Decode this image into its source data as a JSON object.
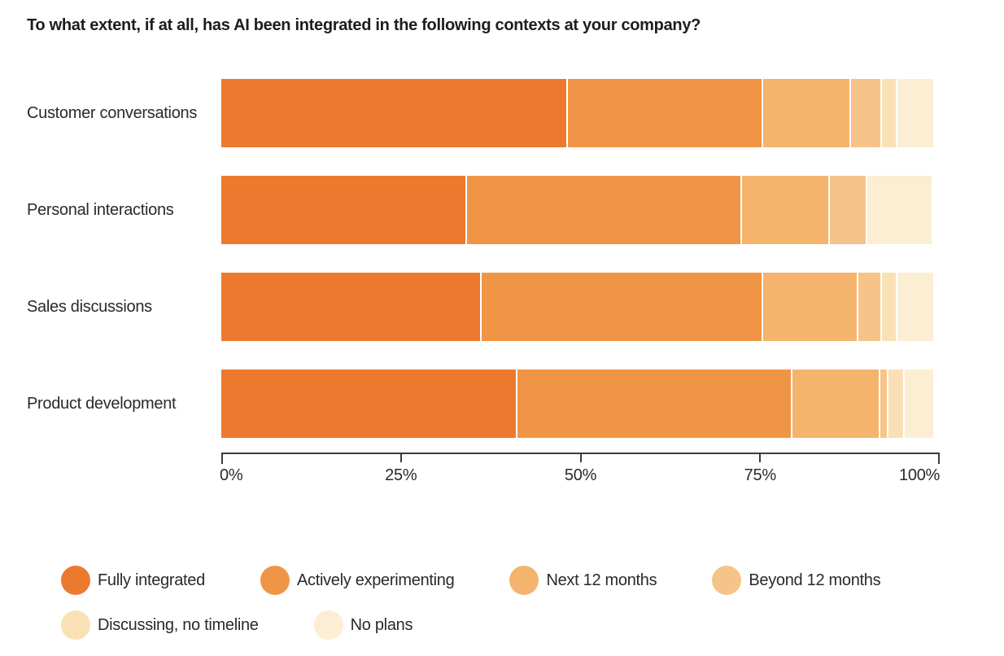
{
  "title": "To what extent, if at all, has AI been integrated in the following contexts at your company?",
  "chart_data": {
    "type": "bar",
    "variant": "stacked-horizontal",
    "unit": "%",
    "title": "To what extent, if at all, has AI been integrated in the following contexts at your company?",
    "categories": [
      "Customer conversations",
      "Personal interactions",
      "Sales discussions",
      "Product development"
    ],
    "series": [
      {
        "name": "Fully integrated",
        "color": "#eb7a2f",
        "values": [
          48,
          34,
          36,
          41
        ]
      },
      {
        "name": "Actively experimenting",
        "color": "#f09546",
        "values": [
          27,
          38,
          39,
          38
        ]
      },
      {
        "name": "Next 12 months",
        "color": "#f4b46d",
        "values": [
          12,
          12,
          13,
          12
        ]
      },
      {
        "name": "Beyond 12 months",
        "color": "#f6c489",
        "values": [
          4,
          5,
          3,
          1
        ]
      },
      {
        "name": "Discussing, no timeline",
        "color": "#fae0b5",
        "values": [
          2,
          0,
          2,
          2
        ]
      },
      {
        "name": "No plans",
        "color": "#fbeed3",
        "values": [
          5,
          9,
          5,
          4
        ]
      }
    ],
    "xlabel": "",
    "ylabel": "",
    "xlim": [
      0,
      100
    ],
    "x_ticks": [
      {
        "label": "0%",
        "pos": 0
      },
      {
        "label": "25%",
        "pos": 25
      },
      {
        "label": "50%",
        "pos": 50
      },
      {
        "label": "75%",
        "pos": 75
      },
      {
        "label": "100%",
        "pos": 100
      }
    ],
    "grid": false,
    "legend_position": "bottom",
    "axis_color": "#3b3b3b"
  }
}
